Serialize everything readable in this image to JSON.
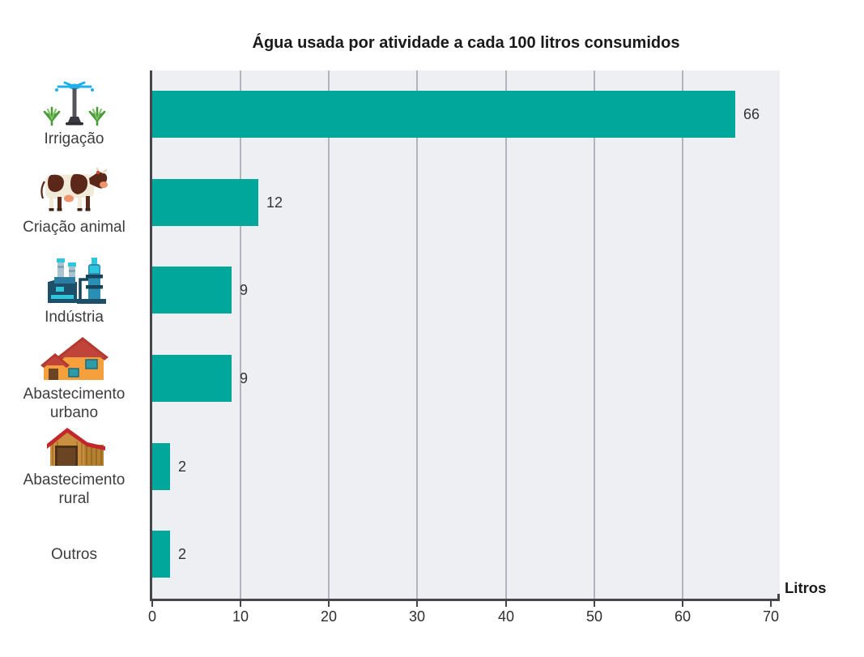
{
  "chart_data": {
    "type": "bar",
    "orientation": "horizontal",
    "title": "Água usada por atividade a cada 100 litros consumidos",
    "categories": [
      "Irrigação",
      "Criação animal",
      "Indústria",
      "Abastecimento urbano",
      "Abastecimento rural",
      "Outros"
    ],
    "category_lines": [
      [
        "Irrigação"
      ],
      [
        "Criação animal"
      ],
      [
        "Indústria"
      ],
      [
        "Abastecimento",
        "urbano"
      ],
      [
        "Abastecimento",
        "rural"
      ],
      [
        "Outros"
      ]
    ],
    "category_icons": [
      "sprinkler-irrigation-icon",
      "cow-icon",
      "factory-icon",
      "house-icon",
      "barn-icon",
      null
    ],
    "values": [
      66,
      12,
      9,
      9,
      2,
      2
    ],
    "xlabel": "Litros",
    "x_ticks": [
      0,
      10,
      20,
      30,
      40,
      50,
      60,
      70
    ],
    "xlim": [
      0,
      71
    ],
    "grid": true,
    "legend": false,
    "colors": {
      "bar": "#02a79b",
      "plot_bg": "#edeff3",
      "gridline": "#b3b5bd",
      "axis": "#45454b",
      "text": "#333333",
      "title": "#1a1a1a"
    }
  }
}
